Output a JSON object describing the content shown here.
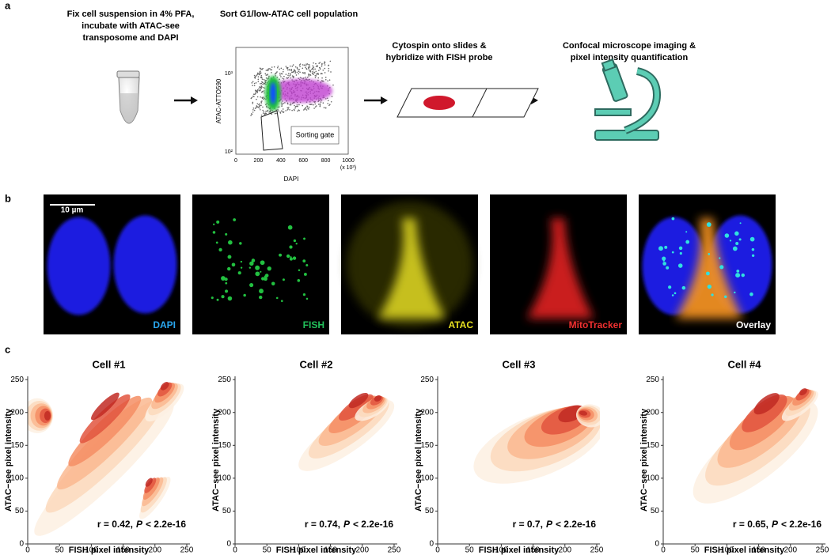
{
  "panel_labels": [
    "a",
    "b",
    "c"
  ],
  "panel_a": {
    "steps": [
      [
        "Fix cell suspension in 4% PFA,",
        "incubate with ATAC-see",
        "transposome and DAPI"
      ],
      [
        "Sort G1/low-ATAC cell population"
      ],
      [
        "Cytospin onto slides &",
        "hybridize with FISH probe"
      ],
      [
        "Confocal microscope imaging &",
        "pixel intensity quantification"
      ]
    ],
    "flow": {
      "y_label": "ATAC-ATTO590",
      "x_label": "DAPI",
      "y_ticks": [
        "10³",
        "10²"
      ],
      "x_ticks": [
        0,
        200,
        400,
        600,
        800,
        1000
      ],
      "x_unit": "(x 10³)",
      "gate": "Sorting gate"
    }
  },
  "panel_b": {
    "scale_bar": "10 µm",
    "images": [
      "DAPI",
      "FISH",
      "ATAC",
      "MitoTracker",
      "Overlay"
    ]
  },
  "panel_c": {
    "x_label": "FISH pixel intensity",
    "y_label": "ATAC−see pixel intensity",
    "ticks": [
      0,
      50,
      100,
      150,
      200,
      250
    ],
    "plots": [
      {
        "title": "Cell #1",
        "r": "r = 0.42,",
        "p": "P",
        "rest": "< 2.2e-16"
      },
      {
        "title": "Cell #2",
        "r": "r = 0.74,",
        "p": "P",
        "rest": "< 2.2e-16"
      },
      {
        "title": "Cell #3",
        "r": "r = 0.7,",
        "p": "P",
        "rest": "< 2.2e-16"
      },
      {
        "title": "Cell #4",
        "r": "r = 0.65,",
        "p": "P",
        "rest": "< 2.2e-16"
      }
    ]
  }
}
